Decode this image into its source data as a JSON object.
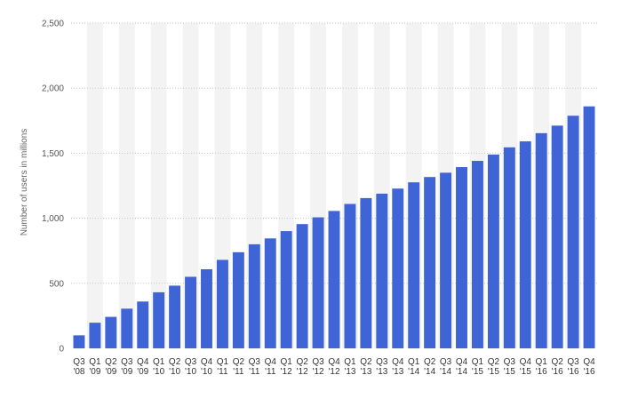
{
  "chart_data": {
    "type": "bar",
    "ylabel": "Number of users in millions",
    "ylim": [
      0,
      2500
    ],
    "yticks": [
      0,
      500,
      1000,
      1500,
      2000,
      2500
    ],
    "ytick_labels": [
      "0",
      "500",
      "1,000",
      "1,500",
      "2,000",
      "2,500"
    ],
    "grid": "horizontal-dotted",
    "alternating_column_shading": true,
    "categories": [
      [
        "Q3",
        "'08"
      ],
      [
        "Q1",
        "'09"
      ],
      [
        "Q2",
        "'09"
      ],
      [
        "Q3",
        "'09"
      ],
      [
        "Q4",
        "'09"
      ],
      [
        "Q1",
        "'10"
      ],
      [
        "Q2",
        "'10"
      ],
      [
        "Q3",
        "'10"
      ],
      [
        "Q4",
        "'10"
      ],
      [
        "Q1",
        "'11"
      ],
      [
        "Q2",
        "'11"
      ],
      [
        "Q3",
        "'11"
      ],
      [
        "Q4",
        "'11"
      ],
      [
        "Q1",
        "'12"
      ],
      [
        "Q2",
        "'12"
      ],
      [
        "Q3",
        "'12"
      ],
      [
        "Q4",
        "'12"
      ],
      [
        "Q1",
        "'13"
      ],
      [
        "Q2",
        "'13"
      ],
      [
        "Q3",
        "'13"
      ],
      [
        "Q4",
        "'13"
      ],
      [
        "Q1",
        "'14"
      ],
      [
        "Q2",
        "'14"
      ],
      [
        "Q3",
        "'14"
      ],
      [
        "Q4",
        "'14"
      ],
      [
        "Q1",
        "'15"
      ],
      [
        "Q2",
        "'15"
      ],
      [
        "Q3",
        "'15"
      ],
      [
        "Q4",
        "'15"
      ],
      [
        "Q1",
        "'16"
      ],
      [
        "Q2",
        "'16"
      ],
      [
        "Q3",
        "'16"
      ],
      [
        "Q4",
        "'16"
      ]
    ],
    "values": [
      100,
      197,
      242,
      305,
      360,
      431,
      482,
      550,
      608,
      680,
      739,
      800,
      845,
      901,
      955,
      1007,
      1056,
      1110,
      1155,
      1189,
      1228,
      1276,
      1317,
      1350,
      1393,
      1441,
      1490,
      1545,
      1591,
      1654,
      1712,
      1788,
      1860
    ],
    "bar_color": "#3e64d6",
    "stripe_color": "#f3f3f3",
    "grid_color": "#c8c8c8"
  }
}
